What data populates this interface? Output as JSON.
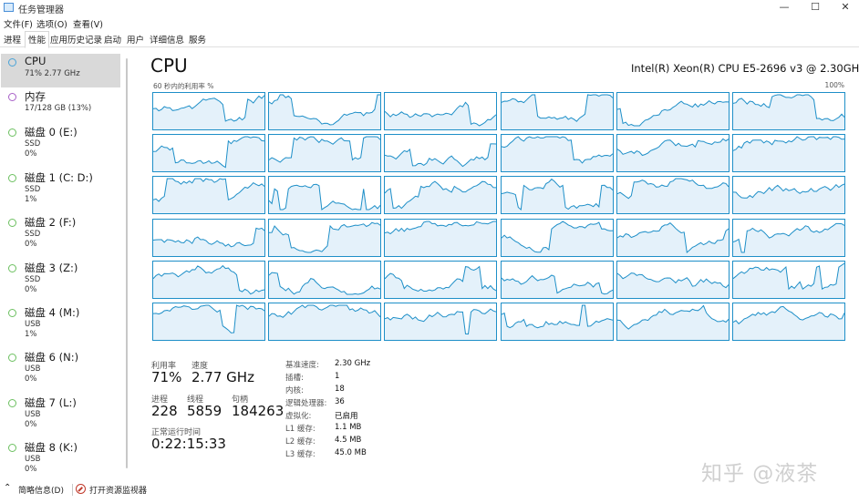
{
  "window": {
    "title": "任务管理器",
    "minimize_glyph": "—",
    "maximize_glyph": "☐",
    "close_glyph": "✕"
  },
  "menu": [
    "文件(F)",
    "选项(O)",
    "查看(V)"
  ],
  "tabs": [
    "进程",
    "性能",
    "应用历史记录",
    "启动",
    "用户",
    "详细信息",
    "服务"
  ],
  "active_tab": "性能",
  "sidebar": [
    {
      "title": "CPU",
      "sub1": "71% 2.77 GHz",
      "sub2": "",
      "color": "#4aa4d8",
      "selected": true
    },
    {
      "title": "内存",
      "sub1": "17/128 GB (13%)",
      "sub2": "",
      "color": "#a860c8"
    },
    {
      "title": "磁盘 0 (E:)",
      "sub1": "SSD",
      "sub2": "0%",
      "color": "#6cc060"
    },
    {
      "title": "磁盘 1 (C: D:)",
      "sub1": "SSD",
      "sub2": "1%",
      "color": "#6cc060"
    },
    {
      "title": "磁盘 2 (F:)",
      "sub1": "SSD",
      "sub2": "0%",
      "color": "#6cc060"
    },
    {
      "title": "磁盘 3 (Z:)",
      "sub1": "SSD",
      "sub2": "0%",
      "color": "#6cc060"
    },
    {
      "title": "磁盘 4 (M:)",
      "sub1": "USB",
      "sub2": "1%",
      "color": "#6cc060"
    },
    {
      "title": "磁盘 6 (N:)",
      "sub1": "USB",
      "sub2": "0%",
      "color": "#6cc060"
    },
    {
      "title": "磁盘 7 (L:)",
      "sub1": "USB",
      "sub2": "0%",
      "color": "#6cc060"
    },
    {
      "title": "磁盘 8 (K:)",
      "sub1": "USB",
      "sub2": "0%",
      "color": "#6cc060"
    }
  ],
  "main": {
    "heading": "CPU",
    "model": "Intel(R) Xeon(R) CPU E5-2696 v3 @ 2.30GHz",
    "util_label": "60 秒内的利用率 %",
    "util_max": "100%",
    "graph_rows": 6,
    "graph_cols": 6,
    "graph_color": "#1e8fc8",
    "graph_fill": "#e4f1fa"
  },
  "stats": {
    "utilization_label": "利用率",
    "utilization_value": "71%",
    "speed_label": "速度",
    "speed_value": "2.77 GHz",
    "processes_label": "进程",
    "processes_value": "228",
    "threads_label": "线程",
    "threads_value": "5859",
    "handles_label": "句柄",
    "handles_value": "184263",
    "uptime_label": "正常运行时间",
    "uptime_value": "0:22:15:33"
  },
  "info": [
    {
      "label": "基准速度:",
      "value": "2.30 GHz"
    },
    {
      "label": "插槽:",
      "value": "1"
    },
    {
      "label": "内核:",
      "value": "18"
    },
    {
      "label": "逻辑处理器:",
      "value": "36"
    },
    {
      "label": "虚拟化:",
      "value": "已启用"
    },
    {
      "label": "L1 缓存:",
      "value": "1.1 MB"
    },
    {
      "label": "L2 缓存:",
      "value": "4.5 MB"
    },
    {
      "label": "L3 缓存:",
      "value": "45.0 MB"
    }
  ],
  "bottom": {
    "fewer_details": "简略信息(D)",
    "open_monitor": "打开资源监视器"
  },
  "watermark": "知乎 @液茶"
}
